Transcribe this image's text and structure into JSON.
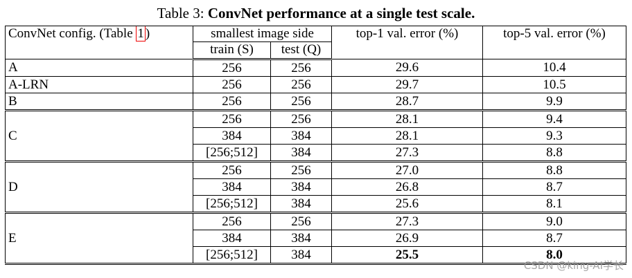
{
  "caption": {
    "label": "Table 3:",
    "title": "ConvNet performance at a single test scale."
  },
  "table": {
    "header": {
      "config": [
        "ConvNet config. (Table ",
        "1",
        ")"
      ],
      "image_side": "smallest image side",
      "train": "train (S)",
      "test": "test (Q)",
      "top1": "top-1 val. error (%)",
      "top5": "top-5 val. error (%)"
    },
    "groups": [
      {
        "config": "A",
        "rows": [
          [
            "256",
            "256",
            "29.6",
            "10.4"
          ]
        ]
      },
      {
        "config": "A-LRN",
        "rows": [
          [
            "256",
            "256",
            "29.7",
            "10.5"
          ]
        ]
      },
      {
        "config": "B",
        "rows": [
          [
            "256",
            "256",
            "28.7",
            "9.9"
          ]
        ]
      },
      {
        "config": "C",
        "rows": [
          [
            "256",
            "256",
            "28.1",
            "9.4"
          ],
          [
            "384",
            "384",
            "28.1",
            "9.3"
          ],
          [
            "[256;512]",
            "384",
            "27.3",
            "8.8"
          ]
        ]
      },
      {
        "config": "D",
        "rows": [
          [
            "256",
            "256",
            "27.0",
            "8.8"
          ],
          [
            "384",
            "384",
            "26.8",
            "8.7"
          ],
          [
            "[256;512]",
            "384",
            "25.6",
            "8.1"
          ]
        ]
      },
      {
        "config": "E",
        "rows": [
          [
            "256",
            "256",
            "27.3",
            "9.0"
          ],
          [
            "384",
            "384",
            "26.9",
            "8.7"
          ],
          [
            "[256;512]",
            "384",
            "25.5",
            "8.0"
          ]
        ],
        "emphasis": {
          "row": 2,
          "columns": [
            2,
            3
          ]
        }
      }
    ]
  },
  "watermark": "CSDN @king-AI学长"
}
